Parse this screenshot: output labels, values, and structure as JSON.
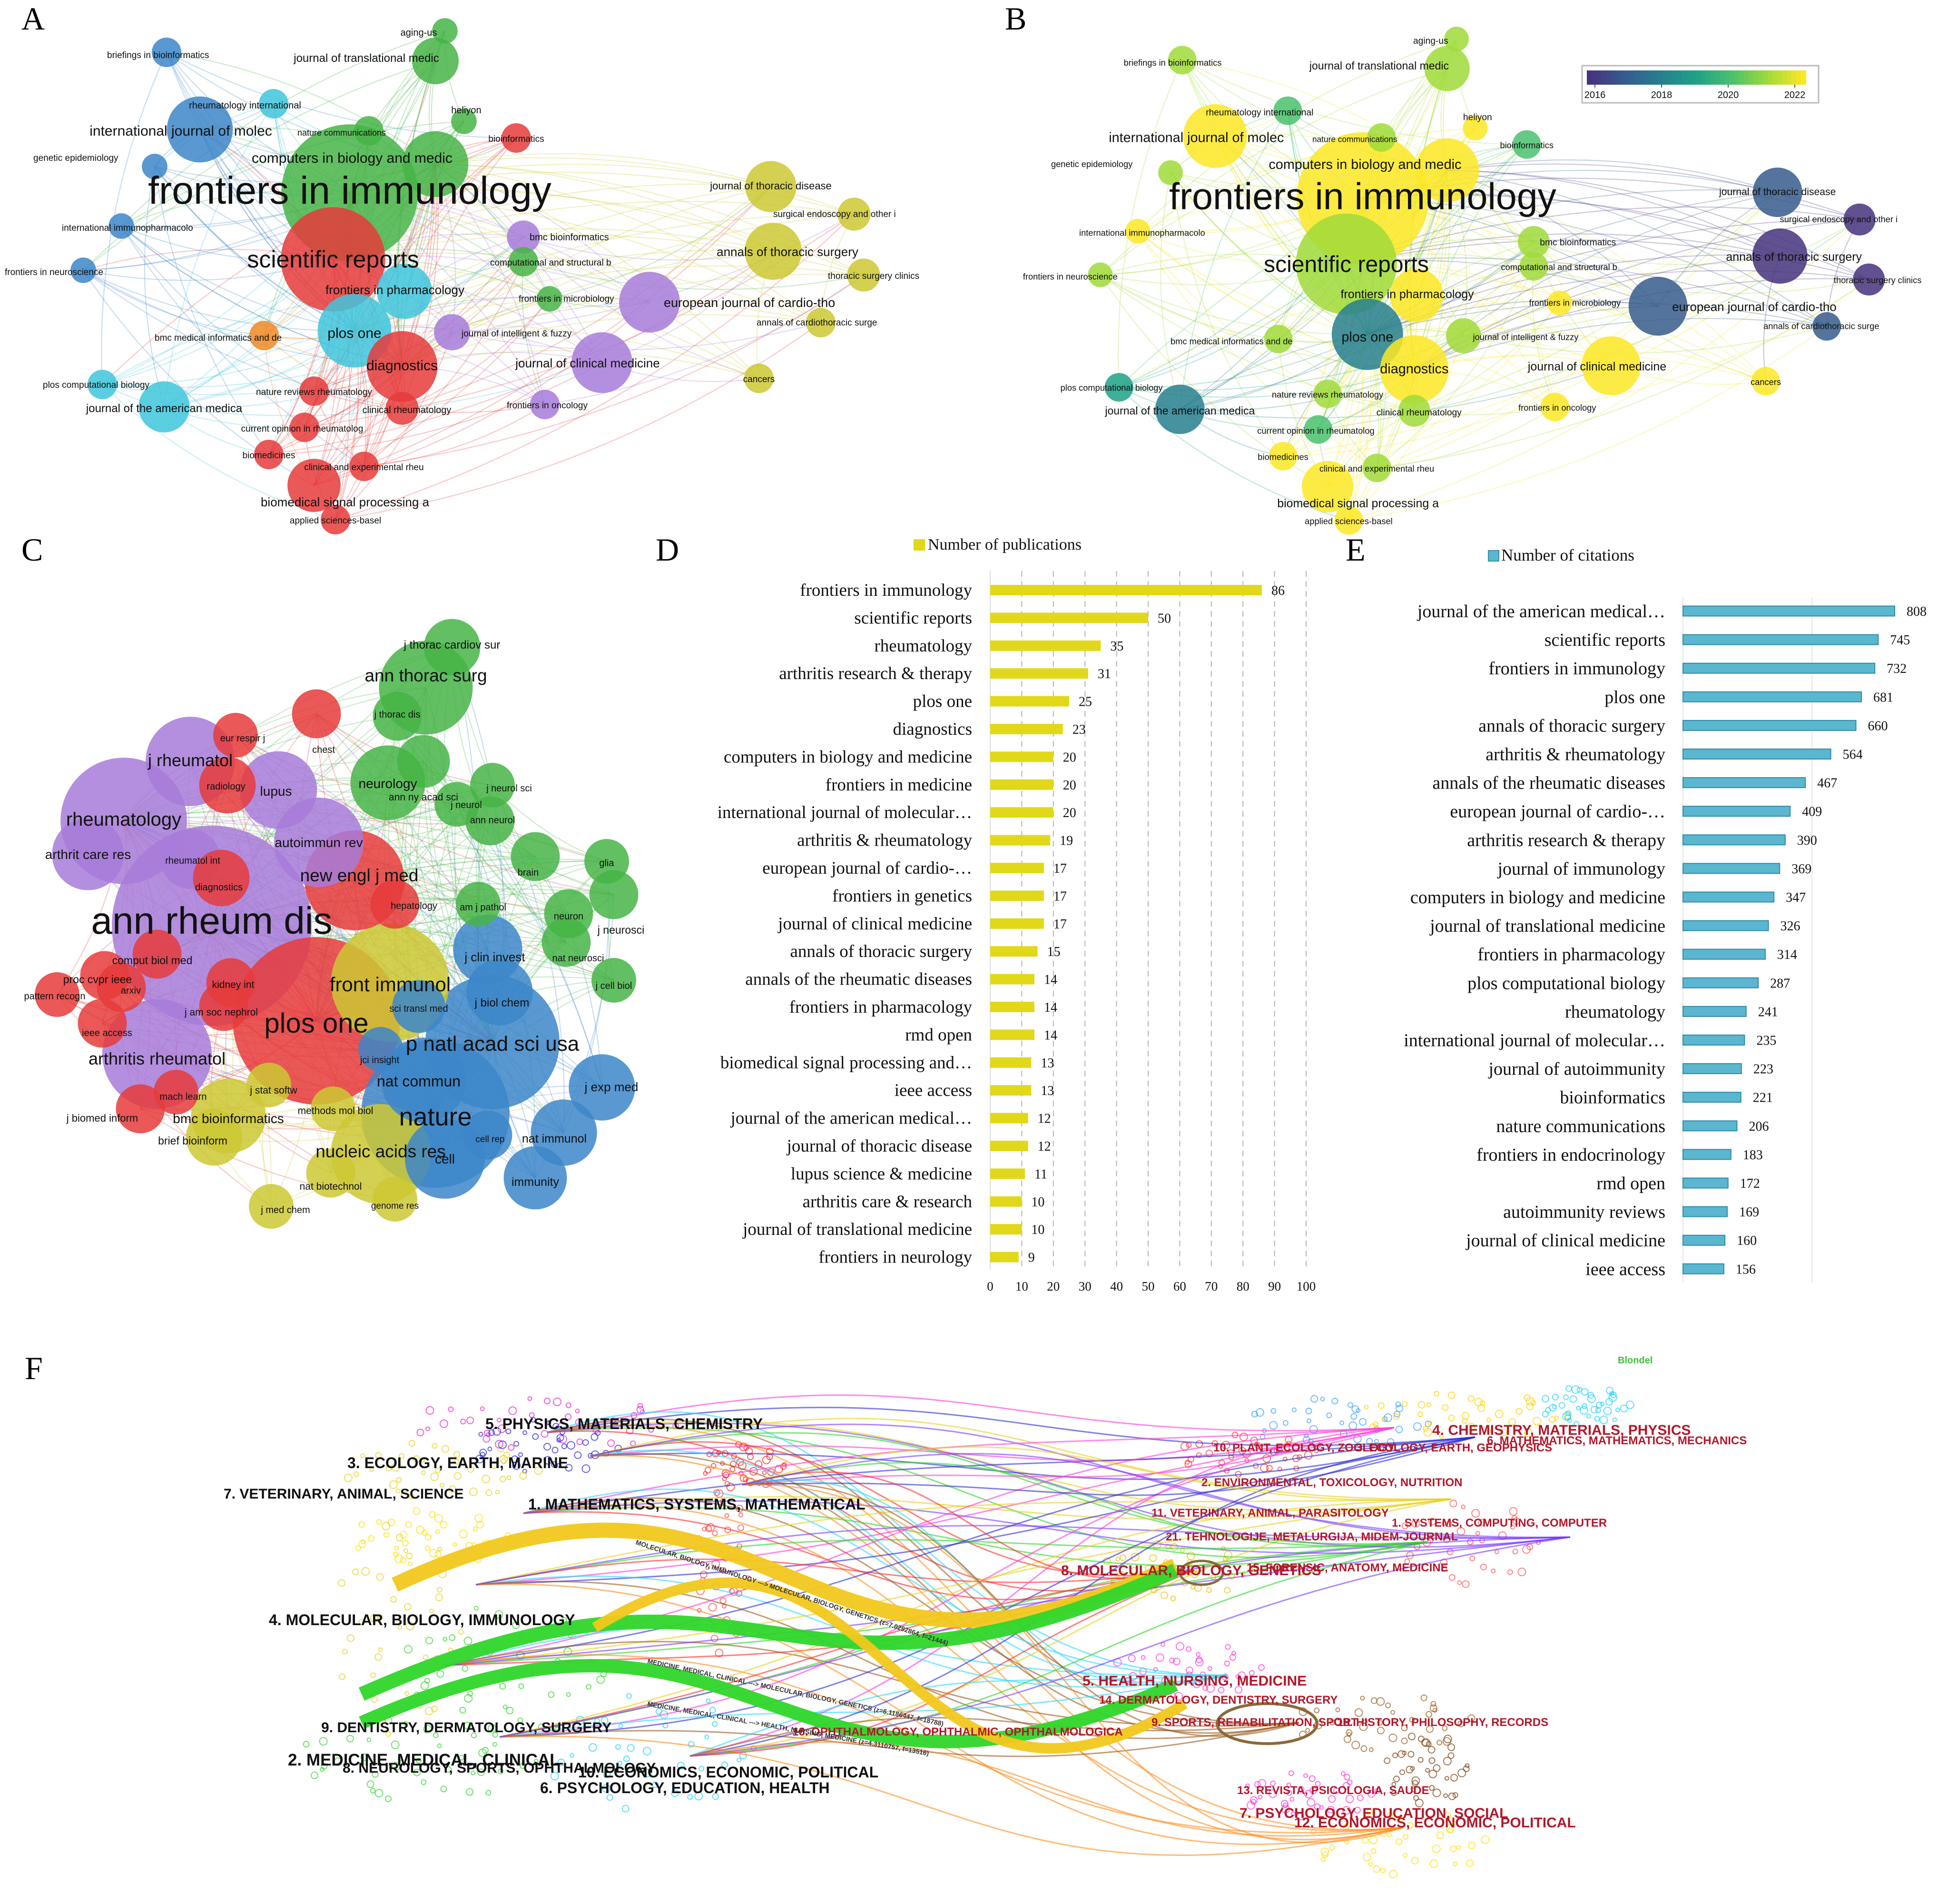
{
  "panels": {
    "A": "A",
    "B": "B",
    "C": "C",
    "D": "D",
    "E": "E",
    "F": "F"
  },
  "colorbar": {
    "ticks": [
      "2016",
      "2018",
      "2020",
      "2022"
    ],
    "stops": [
      "#46327e",
      "#365c8d",
      "#277f8e",
      "#1fa187",
      "#4ac16d",
      "#a0da39",
      "#fde725"
    ]
  },
  "cluster_colors": {
    "red": "#e63b3b",
    "green": "#47b447",
    "blue": "#3c86c9",
    "yellow": "#cdc832",
    "purple": "#a77bd9",
    "cyan": "#3fc5dc",
    "orange": "#f08a24"
  },
  "network_a": {
    "nodes": [
      {
        "id": "frontiers in immunology",
        "c": "green",
        "w": 86,
        "y": 2022
      },
      {
        "id": "scientific reports",
        "c": "red",
        "w": 50,
        "y": 2021
      },
      {
        "id": "computers in biology and medic",
        "c": "green",
        "w": 20,
        "y": 2022
      },
      {
        "id": "international journal of molec",
        "c": "blue",
        "w": 20,
        "y": 2022
      },
      {
        "id": "aging-us",
        "c": "green",
        "w": 3,
        "y": 2021
      },
      {
        "id": "journal of translational medic",
        "c": "green",
        "w": 10,
        "y": 2021
      },
      {
        "id": "briefings in bioinformatics",
        "c": "blue",
        "w": 4,
        "y": 2021
      },
      {
        "id": "rheumatology international",
        "c": "cyan",
        "w": 4,
        "y": 2020
      },
      {
        "id": "heliyon",
        "c": "green",
        "w": 3,
        "y": 2022
      },
      {
        "id": "nature communications",
        "c": "green",
        "w": 4,
        "y": 2021
      },
      {
        "id": "bioinformatics",
        "c": "red",
        "w": 4,
        "y": 2020
      },
      {
        "id": "genetic epidemiology",
        "c": "blue",
        "w": 3,
        "y": 2021
      },
      {
        "id": "international immunopharmacolo",
        "c": "blue",
        "w": 3,
        "y": 2022
      },
      {
        "id": "frontiers in neuroscience",
        "c": "blue",
        "w": 3,
        "y": 2021
      },
      {
        "id": "frontiers in pharmacology",
        "c": "cyan",
        "w": 14,
        "y": 2022
      },
      {
        "id": "plos one",
        "c": "cyan",
        "w": 25,
        "y": 2018
      },
      {
        "id": "diagnostics",
        "c": "red",
        "w": 23,
        "y": 2022
      },
      {
        "id": "bmc medical informatics and de",
        "c": "orange",
        "w": 4,
        "y": 2021
      },
      {
        "id": "plos computational biology",
        "c": "cyan",
        "w": 4,
        "y": 2019
      },
      {
        "id": "journal of the american medica",
        "c": "cyan",
        "w": 12,
        "y": 2018
      },
      {
        "id": "nature reviews rheumatology",
        "c": "red",
        "w": 4,
        "y": 2021
      },
      {
        "id": "clinical rheumatology",
        "c": "red",
        "w": 5,
        "y": 2021
      },
      {
        "id": "current opinion in rheumatolog",
        "c": "red",
        "w": 4,
        "y": 2020
      },
      {
        "id": "biomedicines",
        "c": "red",
        "w": 4,
        "y": 2022
      },
      {
        "id": "clinical and experimental rheu",
        "c": "red",
        "w": 4,
        "y": 2021
      },
      {
        "id": "biomedical signal processing a",
        "c": "red",
        "w": 13,
        "y": 2022
      },
      {
        "id": "applied sciences-basel",
        "c": "red",
        "w": 4,
        "y": 2022
      },
      {
        "id": "bmc bioinformatics",
        "c": "purple",
        "w": 5,
        "y": 2021
      },
      {
        "id": "computational and structural b",
        "c": "green",
        "w": 4,
        "y": 2021
      },
      {
        "id": "frontiers in microbiology",
        "c": "green",
        "w": 3,
        "y": 2022
      },
      {
        "id": "journal of intelligent & fuzzy",
        "c": "purple",
        "w": 6,
        "y": 2021
      },
      {
        "id": "journal of clinical medicine",
        "c": "purple",
        "w": 17,
        "y": 2022
      },
      {
        "id": "frontiers in oncology",
        "c": "purple",
        "w": 4,
        "y": 2022
      },
      {
        "id": "journal of thoracic disease",
        "c": "yellow",
        "w": 12,
        "y": 2017
      },
      {
        "id": "surgical endoscopy and other i",
        "c": "yellow",
        "w": 5,
        "y": 2016
      },
      {
        "id": "annals of thoracic surgery",
        "c": "yellow",
        "w": 15,
        "y": 2016
      },
      {
        "id": "thoracic surgery clinics",
        "c": "yellow",
        "w": 5,
        "y": 2016
      },
      {
        "id": "european journal of cardio-tho",
        "c": "purple",
        "w": 17,
        "y": 2017
      },
      {
        "id": "annals of cardiothoracic surge",
        "c": "yellow",
        "w": 4,
        "y": 2017
      },
      {
        "id": "cancers",
        "c": "yellow",
        "w": 4,
        "y": 2022
      }
    ]
  },
  "network_c": {
    "nodes": [
      {
        "id": "ann rheum dis",
        "c": "purple",
        "w": 100
      },
      {
        "id": "plos one",
        "c": "red",
        "w": 70
      },
      {
        "id": "nature",
        "c": "blue",
        "w": 55
      },
      {
        "id": "p natl acad sci usa",
        "c": "blue",
        "w": 45
      },
      {
        "id": "front immunol",
        "c": "yellow",
        "w": 35
      },
      {
        "id": "rheumatology",
        "c": "purple",
        "w": 40
      },
      {
        "id": "ann thorac surg",
        "c": "green",
        "w": 22
      },
      {
        "id": "new engl j med",
        "c": "red",
        "w": 25
      },
      {
        "id": "arthritis rheumatol",
        "c": "purple",
        "w": 30
      },
      {
        "id": "nucleic acids res",
        "c": "yellow",
        "w": 25
      },
      {
        "id": "j rheumatol",
        "c": "purple",
        "w": 20
      },
      {
        "id": "autoimmun rev",
        "c": "purple",
        "w": 20
      },
      {
        "id": "lupus",
        "c": "purple",
        "w": 15
      },
      {
        "id": "neurology",
        "c": "green",
        "w": 14
      },
      {
        "id": "nat commun",
        "c": "blue",
        "w": 18
      },
      {
        "id": "cell",
        "c": "blue",
        "w": 16
      },
      {
        "id": "bmc bioinformatics",
        "c": "yellow",
        "w": 14
      },
      {
        "id": "arthrit care res",
        "c": "purple",
        "w": 13
      },
      {
        "id": "j clin invest",
        "c": "blue",
        "w": 12
      },
      {
        "id": "j biol chem",
        "c": "blue",
        "w": 11
      },
      {
        "id": "j exp med",
        "c": "blue",
        "w": 11
      },
      {
        "id": "nat immunol",
        "c": "blue",
        "w": 11
      },
      {
        "id": "immunity",
        "c": "blue",
        "w": 10
      },
      {
        "id": "j thorac cardiov sur",
        "c": "green",
        "w": 8
      },
      {
        "id": "j thorac dis",
        "c": "green",
        "w": 6
      },
      {
        "id": "chest",
        "c": "red",
        "w": 6
      },
      {
        "id": "eur respir j",
        "c": "red",
        "w": 5
      },
      {
        "id": "radiology",
        "c": "red",
        "w": 8
      },
      {
        "id": "ann ny acad sci",
        "c": "green",
        "w": 7
      },
      {
        "id": "j neurol sci",
        "c": "green",
        "w": 5
      },
      {
        "id": "j neurol",
        "c": "green",
        "w": 5
      },
      {
        "id": "ann neurol",
        "c": "green",
        "w": 6
      },
      {
        "id": "brain",
        "c": "green",
        "w": 6
      },
      {
        "id": "glia",
        "c": "green",
        "w": 5
      },
      {
        "id": "j neurosci",
        "c": "green",
        "w": 6
      },
      {
        "id": "neuron",
        "c": "green",
        "w": 6
      },
      {
        "id": "nat neurosci",
        "c": "green",
        "w": 6
      },
      {
        "id": "am j pathol",
        "c": "green",
        "w": 5
      },
      {
        "id": "j cell biol",
        "c": "green",
        "w": 5
      },
      {
        "id": "rheumatol int",
        "c": "purple",
        "w": 9
      },
      {
        "id": "diagnostics",
        "c": "red",
        "w": 8
      },
      {
        "id": "hepatology",
        "c": "red",
        "w": 6
      },
      {
        "id": "comput biol med",
        "c": "red",
        "w": 6
      },
      {
        "id": "kidney int",
        "c": "red",
        "w": 6
      },
      {
        "id": "pattern recogn",
        "c": "red",
        "w": 5
      },
      {
        "id": "proc cvpr ieee",
        "c": "red",
        "w": 6
      },
      {
        "id": "arxiv",
        "c": "red",
        "w": 6
      },
      {
        "id": "ieee access",
        "c": "red",
        "w": 6
      },
      {
        "id": "j am soc nephrol",
        "c": "red",
        "w": 6
      },
      {
        "id": "sci transl med",
        "c": "blue",
        "w": 7
      },
      {
        "id": "jci insight",
        "c": "blue",
        "w": 5
      },
      {
        "id": "j stat softw",
        "c": "yellow",
        "w": 5
      },
      {
        "id": "mach learn",
        "c": "red",
        "w": 5
      },
      {
        "id": "methods mol biol",
        "c": "yellow",
        "w": 5
      },
      {
        "id": "j biomed inform",
        "c": "red",
        "w": 6
      },
      {
        "id": "brief bioinform",
        "c": "yellow",
        "w": 8
      },
      {
        "id": "cell rep",
        "c": "blue",
        "w": 6
      },
      {
        "id": "nat biotechnol",
        "c": "yellow",
        "w": 6
      },
      {
        "id": "genome res",
        "c": "yellow",
        "w": 5
      },
      {
        "id": "j med chem",
        "c": "yellow",
        "w": 5
      }
    ]
  },
  "chart_data": [
    {
      "type": "bar",
      "title": "Number of  publications",
      "orientation": "horizontal",
      "categories": [
        "frontiers in immunology",
        "scientific reports",
        "rheumatology",
        "arthritis research & therapy",
        "plos one",
        "diagnostics",
        "computers in biology and medicine",
        "frontiers in medicine",
        "international journal of molecular…",
        "arthritis & rheumatology",
        "european journal of cardio-…",
        "frontiers in genetics",
        "journal of clinical medicine",
        "annals of thoracic surgery",
        "annals of the rheumatic diseases",
        "frontiers in pharmacology",
        "rmd open",
        "biomedical signal processing and…",
        "ieee access",
        "journal of the american medical…",
        "journal of thoracic disease",
        "lupus science & medicine",
        "arthritis care & research",
        "journal of translational medicine",
        "frontiers in neurology"
      ],
      "values": [
        86,
        50,
        35,
        31,
        25,
        23,
        20,
        20,
        20,
        19,
        17,
        17,
        17,
        15,
        14,
        14,
        14,
        13,
        13,
        12,
        12,
        11,
        10,
        10,
        9
      ],
      "xlim": [
        0,
        100
      ],
      "xticks": [
        "0",
        "10",
        "20",
        "30",
        "40",
        "50",
        "60",
        "70",
        "80",
        "90",
        "100"
      ],
      "color": "#e1d81a"
    },
    {
      "type": "bar",
      "title": "Number of citations",
      "orientation": "horizontal",
      "categories": [
        "journal of the american medical…",
        "scientific reports",
        "frontiers in immunology",
        "plos one",
        "annals of thoracic surgery",
        "arthritis & rheumatology",
        "annals of the rheumatic diseases",
        "european journal of cardio-…",
        "arthritis research & therapy",
        "journal of immunology",
        "computers in biology and medicine",
        "journal of translational medicine",
        "frontiers in pharmacology",
        "plos computational biology",
        "rheumatology",
        "international journal of molecular…",
        "journal of autoimmunity",
        "bioinformatics",
        "nature communications",
        "frontiers in endocrinology",
        "rmd open",
        "autoimmunity reviews",
        "journal of clinical medicine",
        "ieee access"
      ],
      "values": [
        808,
        745,
        732,
        681,
        660,
        564,
        467,
        409,
        390,
        369,
        347,
        326,
        314,
        287,
        241,
        235,
        223,
        221,
        206,
        183,
        172,
        169,
        160,
        156
      ],
      "xlim": [
        0,
        808
      ],
      "color": "#5bb6cf"
    }
  ],
  "overlay": {
    "label": "Blondel",
    "citing": [
      {
        "t": "5. PHYSICS, MATERIALS, CHEMISTRY",
        "s": 1
      },
      {
        "t": "3. ECOLOGY, EARTH, MARINE",
        "s": 1
      },
      {
        "t": "7. VETERINARY, ANIMAL, SCIENCE",
        "s": 0
      },
      {
        "t": "1. MATHEMATICS, SYSTEMS, MATHEMATICAL",
        "s": 1
      },
      {
        "t": "4. MOLECULAR, BIOLOGY, IMMUNOLOGY",
        "s": 1
      },
      {
        "t": "9. DENTISTRY, DERMATOLOGY, SURGERY",
        "s": 0
      },
      {
        "t": "2. MEDICINE, MEDICAL, CLINICAL",
        "s": 2
      },
      {
        "t": "8. NEUROLOGY, SPORTS, OPHTHALMOLOGY",
        "s": 0
      },
      {
        "t": "10. ECONOMICS, ECONOMIC, POLITICAL",
        "s": 1
      },
      {
        "t": "6. PSYCHOLOGY, EDUCATION, HEALTH",
        "s": 1
      }
    ],
    "cited": [
      {
        "t": "4. CHEMISTRY, MATERIALS, PHYSICS",
        "s": 1
      },
      {
        "t": "6. MATHEMATICS, MATHEMATICS, MECHANICS",
        "s": 0
      },
      {
        "t": "10. PLANT, ECOLOGY, ZOOLOGY",
        "s": 0
      },
      {
        "t": "3. ECOLOGY, EARTH, GEOPHYSICS",
        "s": 0
      },
      {
        "t": "2. ENVIRONMENTAL, TOXICOLOGY, NUTRITION",
        "s": 0
      },
      {
        "t": "11. VETERINARY, ANIMAL, PARASITOLOGY",
        "s": 0
      },
      {
        "t": "1. SYSTEMS, COMPUTING, COMPUTER",
        "s": 0
      },
      {
        "t": "21. TEHNOLOGIJE, METALURGIJA, MIDEM-JOURNAL",
        "s": 0
      },
      {
        "t": "15. FORENSIC, ANATOMY, MEDICINE",
        "s": 0
      },
      {
        "t": "8. MOLECULAR, BIOLOGY, GENETICS",
        "s": 1
      },
      {
        "t": "5. HEALTH, NURSING, MEDICINE",
        "s": 1
      },
      {
        "t": "14. DERMATOLOGY, DENTISTRY, SURGERY",
        "s": 0
      },
      {
        "t": "9. SPORTS, REHABILITATION, SPORT",
        "s": 0
      },
      {
        "t": "18. HISTORY, PHILOSOPHY, RECORDS",
        "s": 0
      },
      {
        "t": "16. OPHTHALMOLOGY, OPHTHALMIC, OPHTHALMOLOGICA",
        "s": 0
      },
      {
        "t": "13. REVISTA, PSICOLOGIA, SAUDE",
        "s": 0
      },
      {
        "t": "7. PSYCHOLOGY, EDUCATION, SOCIAL",
        "s": 1
      },
      {
        "t": "12. ECONOMICS, ECONOMIC, POLITICAL",
        "s": 1
      }
    ],
    "paths": [
      {
        "t": "MOLECULAR, BIOLOGY, IMMUNOLOGY ---> MOLECULAR, BIOLOGY, GENETICS (z=7.0292864, f=21444)",
        "color": "#f2c81c"
      },
      {
        "t": "MEDICINE, MEDICAL, CLINICAL ---> MOLECULAR, BIOLOGY, GENETICS (z=6.1186447, f=18788)",
        "color": "#2fd62a"
      },
      {
        "t": "MEDICINE, MEDICAL, CLINICAL ---> HEALTH, NURSING, MEDICINE (z=4.3110757, f=13516)",
        "color": "#2fd62a"
      }
    ]
  }
}
